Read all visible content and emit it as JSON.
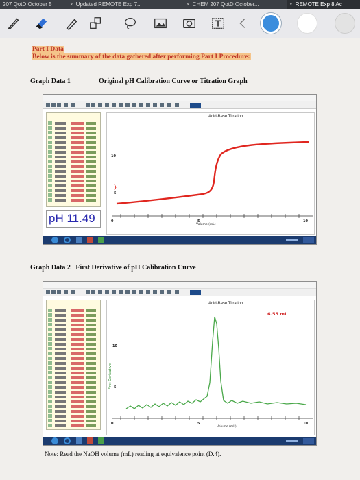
{
  "browser": {
    "tabs": [
      {
        "label": "207 QotD October 5"
      },
      {
        "label": "Updated REMOTE Exp 7..."
      },
      {
        "label": "CHEM 207 QotD October..."
      },
      {
        "label": "REMOTE Exp 8 Ac"
      }
    ]
  },
  "toolbar": {
    "tools": [
      "pen-icon",
      "eraser-icon",
      "pencil-icon",
      "shapes-icon",
      "lasso-icon",
      "image-icon",
      "camera-icon",
      "text-icon",
      "back-icon"
    ],
    "colors": {
      "active": "#3b8ddd",
      "white": "#ffffff",
      "light": "#e3e3e3"
    }
  },
  "doc": {
    "part_title": "Part I Data",
    "part_subtitle": "Below is the summary of the data gathered after performing Part I Procedure:",
    "graph1_label": "Graph Data 1",
    "graph1_title": "Original pH Calibration Curve or Titration Graph",
    "graph2_label": "Graph Data 2",
    "graph2_title": "First Derivative of pH Calibration Curve",
    "note": "Note: Read the NaOH volume (mL) reading at equivalence point (D.4)."
  },
  "graph1": {
    "graph_title": "Acid-Base Titration",
    "ph_readout": "pH 11.49",
    "y_ticks": [
      "10",
      "5"
    ],
    "x_ticks": [
      "0",
      "5",
      "10"
    ],
    "x_label": "Volume (mL)"
  },
  "graph2": {
    "graph_title": "Acid-Base Titration",
    "peak_label": "6.55 mL",
    "y_label": "First Derivative",
    "y_ticks": [
      "10",
      "5"
    ],
    "x_ticks": [
      "0",
      "5",
      "10"
    ],
    "x_label": "Volume (mL)"
  }
}
